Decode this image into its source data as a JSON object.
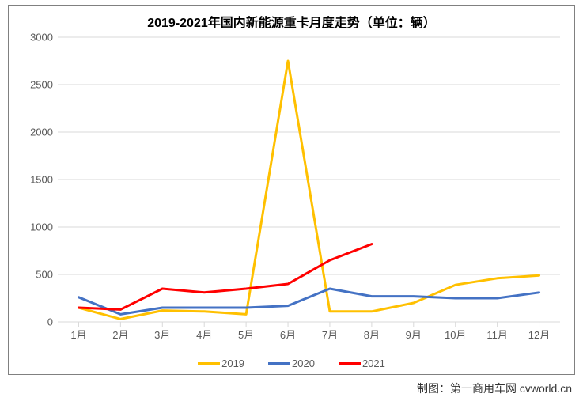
{
  "chart": {
    "type": "line",
    "title": "2019-2021年国内新能源重卡月度走势（单位：辆）",
    "title_fontsize": 16,
    "title_fontweight": "bold",
    "background_color": "#ffffff",
    "border_color": "#808080",
    "grid_color": "#d9d9d9",
    "axis_line_color": "#d9d9d9",
    "x_categories": [
      "1月",
      "2月",
      "3月",
      "4月",
      "5月",
      "6月",
      "7月",
      "8月",
      "9月",
      "10月",
      "11月",
      "12月"
    ],
    "ylim": [
      0,
      3000
    ],
    "ytick_step": 500,
    "y_ticks": [
      0,
      500,
      1000,
      1500,
      2000,
      2500,
      3000
    ],
    "tick_fontsize": 13,
    "tick_color": "#595959",
    "line_width": 3,
    "series": [
      {
        "name": "2019",
        "color": "#ffc000",
        "values": [
          150,
          30,
          120,
          110,
          80,
          2750,
          110,
          110,
          200,
          390,
          460,
          490
        ]
      },
      {
        "name": "2020",
        "color": "#4472c4",
        "values": [
          260,
          80,
          150,
          150,
          150,
          170,
          350,
          270,
          270,
          250,
          250,
          310
        ]
      },
      {
        "name": "2021",
        "color": "#ff0000",
        "values": [
          150,
          130,
          350,
          310,
          350,
          400,
          650,
          820
        ]
      }
    ],
    "legend_position": "bottom",
    "tick_mark_length": 6
  },
  "credit": "制图：第一商用车网 cvworld.cn"
}
